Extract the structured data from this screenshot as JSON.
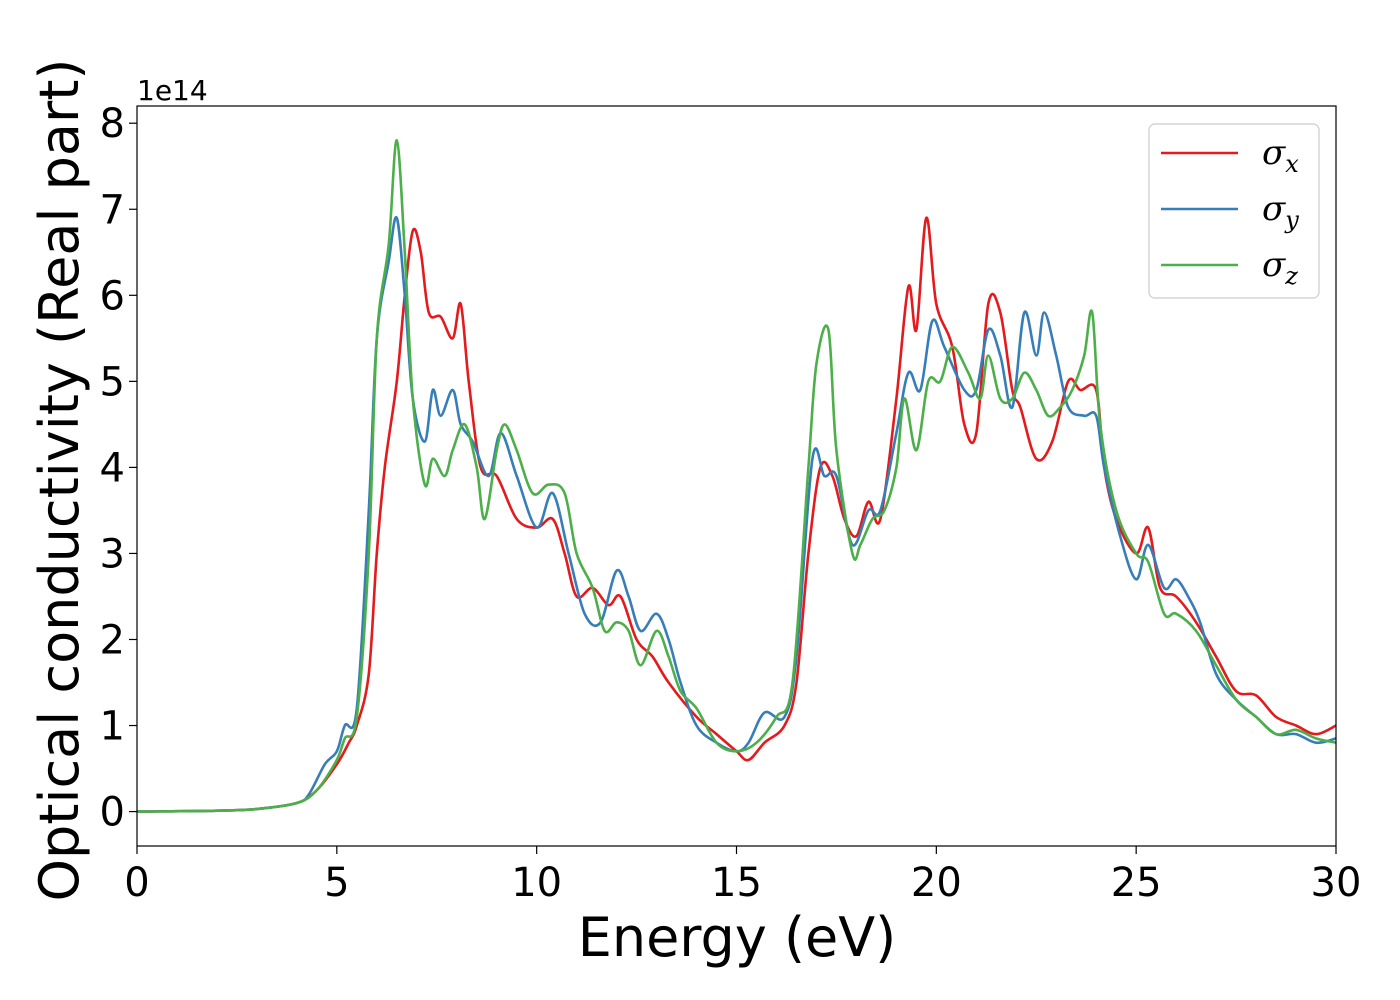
{
  "chart_data": {
    "type": "line",
    "xlabel": "Energy (eV)",
    "ylabel": "Optical conductivity (Real part)",
    "y_offset_label": "1e14",
    "xlim": [
      0,
      30
    ],
    "ylim": [
      -0.4,
      8.2
    ],
    "y_scale_factor": 100000000000000.0,
    "x_ticks": [
      "0",
      "5",
      "10",
      "15",
      "20",
      "25",
      "30"
    ],
    "y_ticks": [
      "0",
      "1",
      "2",
      "3",
      "4",
      "5",
      "6",
      "7",
      "8"
    ],
    "legend_position": "top-right",
    "grid": false,
    "series": [
      {
        "name": "σx",
        "symbol": "σ",
        "sub": "x",
        "color": "#e41a1c",
        "points": [
          [
            0,
            0
          ],
          [
            2,
            0.01
          ],
          [
            3,
            0.03
          ],
          [
            4,
            0.1
          ],
          [
            4.5,
            0.25
          ],
          [
            5,
            0.55
          ],
          [
            5.3,
            0.8
          ],
          [
            5.5,
            1.0
          ],
          [
            5.8,
            1.6
          ],
          [
            6,
            3.0
          ],
          [
            6.2,
            4.0
          ],
          [
            6.5,
            5.0
          ],
          [
            6.7,
            6.0
          ],
          [
            6.9,
            6.75
          ],
          [
            7.1,
            6.5
          ],
          [
            7.3,
            5.8
          ],
          [
            7.6,
            5.75
          ],
          [
            7.9,
            5.5
          ],
          [
            8.1,
            5.9
          ],
          [
            8.3,
            5.0
          ],
          [
            8.6,
            4.0
          ],
          [
            9,
            3.9
          ],
          [
            9.5,
            3.4
          ],
          [
            10,
            3.3
          ],
          [
            10.4,
            3.4
          ],
          [
            10.7,
            3.0
          ],
          [
            11,
            2.5
          ],
          [
            11.4,
            2.6
          ],
          [
            11.8,
            2.4
          ],
          [
            12.1,
            2.5
          ],
          [
            12.5,
            2.0
          ],
          [
            12.9,
            1.8
          ],
          [
            13.3,
            1.5
          ],
          [
            14,
            1.1
          ],
          [
            14.5,
            0.9
          ],
          [
            15,
            0.7
          ],
          [
            15.3,
            0.6
          ],
          [
            15.7,
            0.8
          ],
          [
            16.2,
            1.0
          ],
          [
            16.5,
            1.5
          ],
          [
            16.8,
            3.0
          ],
          [
            17.1,
            4.0
          ],
          [
            17.4,
            3.9
          ],
          [
            17.7,
            3.4
          ],
          [
            18,
            3.2
          ],
          [
            18.3,
            3.6
          ],
          [
            18.6,
            3.4
          ],
          [
            19,
            4.8
          ],
          [
            19.3,
            6.1
          ],
          [
            19.5,
            5.6
          ],
          [
            19.75,
            6.9
          ],
          [
            20,
            5.9
          ],
          [
            20.4,
            5.4
          ],
          [
            20.7,
            4.5
          ],
          [
            21,
            4.4
          ],
          [
            21.3,
            5.9
          ],
          [
            21.6,
            5.8
          ],
          [
            21.9,
            4.9
          ],
          [
            22.1,
            4.7
          ],
          [
            22.5,
            4.1
          ],
          [
            22.9,
            4.3
          ],
          [
            23.3,
            5.0
          ],
          [
            23.6,
            4.9
          ],
          [
            24,
            4.9
          ],
          [
            24.2,
            4.0
          ],
          [
            24.5,
            3.4
          ],
          [
            25,
            3.0
          ],
          [
            25.3,
            3.3
          ],
          [
            25.6,
            2.6
          ],
          [
            26,
            2.5
          ],
          [
            26.5,
            2.2
          ],
          [
            27,
            1.8
          ],
          [
            27.5,
            1.4
          ],
          [
            28,
            1.35
          ],
          [
            28.5,
            1.1
          ],
          [
            29,
            1.0
          ],
          [
            29.5,
            0.9
          ],
          [
            30,
            1.0
          ]
        ]
      },
      {
        "name": "σy",
        "symbol": "σ",
        "sub": "y",
        "color": "#377eb8",
        "points": [
          [
            0,
            0
          ],
          [
            2,
            0.01
          ],
          [
            3,
            0.03
          ],
          [
            4,
            0.1
          ],
          [
            4.3,
            0.2
          ],
          [
            4.7,
            0.55
          ],
          [
            5,
            0.7
          ],
          [
            5.2,
            1.0
          ],
          [
            5.5,
            1.2
          ],
          [
            5.8,
            3.5
          ],
          [
            6.0,
            5.5
          ],
          [
            6.3,
            6.4
          ],
          [
            6.5,
            6.9
          ],
          [
            6.7,
            6.0
          ],
          [
            6.9,
            4.8
          ],
          [
            7.2,
            4.3
          ],
          [
            7.4,
            4.9
          ],
          [
            7.6,
            4.6
          ],
          [
            7.9,
            4.9
          ],
          [
            8.1,
            4.5
          ],
          [
            8.4,
            4.3
          ],
          [
            8.8,
            3.9
          ],
          [
            9.1,
            4.4
          ],
          [
            9.5,
            3.9
          ],
          [
            10,
            3.3
          ],
          [
            10.4,
            3.7
          ],
          [
            10.8,
            3.0
          ],
          [
            11.2,
            2.3
          ],
          [
            11.6,
            2.2
          ],
          [
            12,
            2.8
          ],
          [
            12.3,
            2.5
          ],
          [
            12.6,
            2.1
          ],
          [
            13,
            2.3
          ],
          [
            13.3,
            2.0
          ],
          [
            13.6,
            1.5
          ],
          [
            14,
            1.0
          ],
          [
            14.5,
            0.8
          ],
          [
            15,
            0.7
          ],
          [
            15.3,
            0.8
          ],
          [
            15.7,
            1.15
          ],
          [
            16.2,
            1.1
          ],
          [
            16.5,
            1.8
          ],
          [
            16.9,
            4.1
          ],
          [
            17.2,
            3.9
          ],
          [
            17.5,
            3.9
          ],
          [
            17.9,
            3.1
          ],
          [
            18.3,
            3.5
          ],
          [
            18.6,
            3.5
          ],
          [
            19,
            4.4
          ],
          [
            19.3,
            5.1
          ],
          [
            19.6,
            4.9
          ],
          [
            19.9,
            5.7
          ],
          [
            20.2,
            5.4
          ],
          [
            20.7,
            4.9
          ],
          [
            21.0,
            4.9
          ],
          [
            21.3,
            5.6
          ],
          [
            21.6,
            5.3
          ],
          [
            21.9,
            4.7
          ],
          [
            22.2,
            5.8
          ],
          [
            22.5,
            5.3
          ],
          [
            22.7,
            5.8
          ],
          [
            23,
            5.3
          ],
          [
            23.3,
            4.7
          ],
          [
            23.7,
            4.6
          ],
          [
            24,
            4.6
          ],
          [
            24.2,
            4.0
          ],
          [
            24.6,
            3.2
          ],
          [
            25,
            2.7
          ],
          [
            25.3,
            3.1
          ],
          [
            25.7,
            2.6
          ],
          [
            26,
            2.7
          ],
          [
            26.3,
            2.5
          ],
          [
            26.6,
            2.2
          ],
          [
            27,
            1.6
          ],
          [
            27.5,
            1.3
          ],
          [
            28,
            1.1
          ],
          [
            28.5,
            0.9
          ],
          [
            29,
            0.9
          ],
          [
            29.5,
            0.8
          ],
          [
            30,
            0.85
          ]
        ]
      },
      {
        "name": "σz",
        "symbol": "σ",
        "sub": "z",
        "color": "#4daf4a",
        "points": [
          [
            0,
            0
          ],
          [
            2,
            0.01
          ],
          [
            3,
            0.03
          ],
          [
            4,
            0.1
          ],
          [
            4.5,
            0.25
          ],
          [
            5,
            0.6
          ],
          [
            5.2,
            0.85
          ],
          [
            5.5,
            1.1
          ],
          [
            5.8,
            3.0
          ],
          [
            6.0,
            5.5
          ],
          [
            6.3,
            6.6
          ],
          [
            6.5,
            7.8
          ],
          [
            6.7,
            6.5
          ],
          [
            6.9,
            4.8
          ],
          [
            7.2,
            3.8
          ],
          [
            7.4,
            4.1
          ],
          [
            7.7,
            3.9
          ],
          [
            7.9,
            4.2
          ],
          [
            8.2,
            4.5
          ],
          [
            8.5,
            4.0
          ],
          [
            8.7,
            3.4
          ],
          [
            9.0,
            4.2
          ],
          [
            9.2,
            4.5
          ],
          [
            9.5,
            4.2
          ],
          [
            9.9,
            3.7
          ],
          [
            10.3,
            3.8
          ],
          [
            10.7,
            3.7
          ],
          [
            11,
            3.0
          ],
          [
            11.4,
            2.6
          ],
          [
            11.7,
            2.1
          ],
          [
            12,
            2.2
          ],
          [
            12.3,
            2.1
          ],
          [
            12.6,
            1.7
          ],
          [
            13,
            2.1
          ],
          [
            13.3,
            1.8
          ],
          [
            13.6,
            1.4
          ],
          [
            14,
            1.2
          ],
          [
            14.5,
            0.8
          ],
          [
            15,
            0.7
          ],
          [
            15.5,
            0.8
          ],
          [
            16,
            1.1
          ],
          [
            16.4,
            1.5
          ],
          [
            16.8,
            4.0
          ],
          [
            17.0,
            5.2
          ],
          [
            17.3,
            5.6
          ],
          [
            17.5,
            4.2
          ],
          [
            17.9,
            3.0
          ],
          [
            18.1,
            3.1
          ],
          [
            18.4,
            3.4
          ],
          [
            18.7,
            3.5
          ],
          [
            19,
            4.0
          ],
          [
            19.2,
            4.8
          ],
          [
            19.5,
            4.2
          ],
          [
            19.8,
            5.0
          ],
          [
            20.1,
            5.0
          ],
          [
            20.4,
            5.4
          ],
          [
            20.8,
            5.1
          ],
          [
            21.1,
            4.8
          ],
          [
            21.3,
            5.3
          ],
          [
            21.6,
            4.8
          ],
          [
            21.9,
            4.8
          ],
          [
            22.2,
            5.1
          ],
          [
            22.5,
            4.9
          ],
          [
            22.8,
            4.6
          ],
          [
            23.1,
            4.7
          ],
          [
            23.4,
            4.9
          ],
          [
            23.7,
            5.3
          ],
          [
            23.9,
            5.8
          ],
          [
            24.1,
            4.5
          ],
          [
            24.5,
            3.5
          ],
          [
            25,
            3.0
          ],
          [
            25.3,
            2.9
          ],
          [
            25.7,
            2.3
          ],
          [
            26,
            2.3
          ],
          [
            26.5,
            2.1
          ],
          [
            27,
            1.7
          ],
          [
            27.5,
            1.3
          ],
          [
            28,
            1.1
          ],
          [
            28.5,
            0.9
          ],
          [
            29,
            0.95
          ],
          [
            29.5,
            0.85
          ],
          [
            30,
            0.8
          ]
        ]
      }
    ]
  }
}
